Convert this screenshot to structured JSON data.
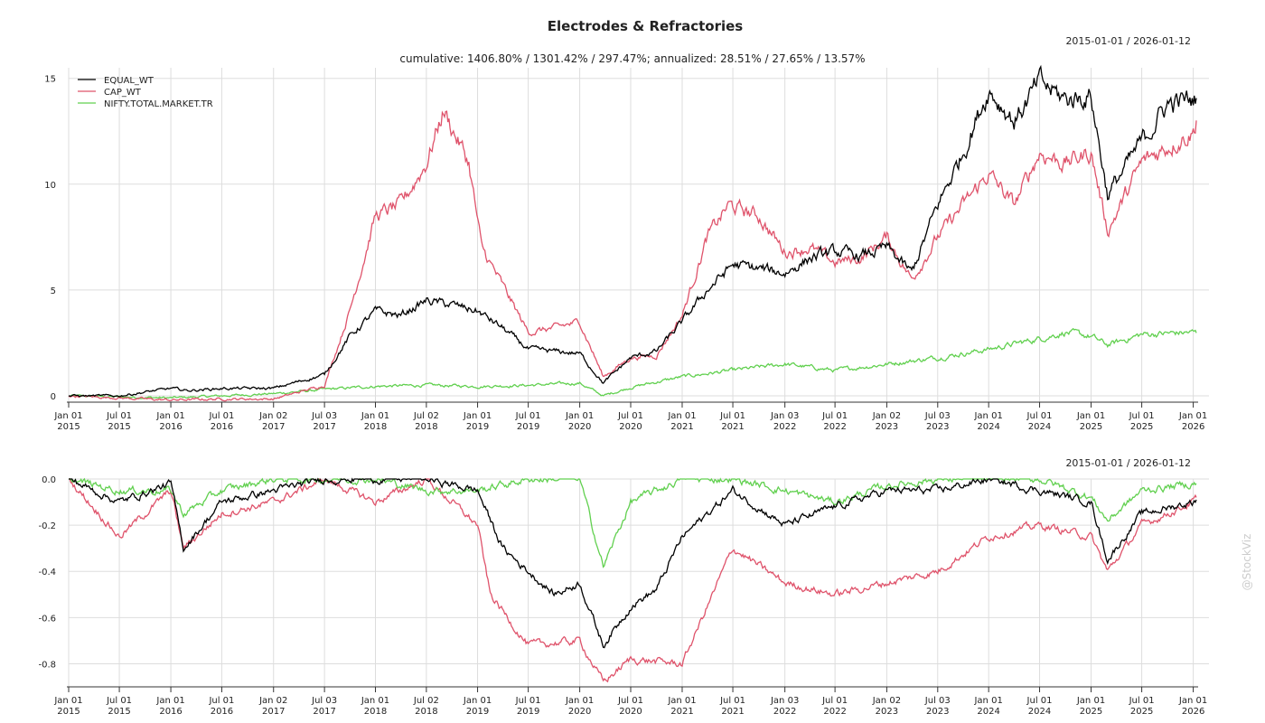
{
  "title": "Electrodes & Refractories",
  "subtitle": "cumulative: 1406.80% / 1301.42% / 297.47%; annualized: 28.51% / 27.65% / 13.57%",
  "date_range_label": "2015-01-01 / 2026-01-12",
  "watermark": "@StockViz",
  "colors": {
    "EQUAL_WT": "#000000",
    "CAP_WT": "#df536b",
    "NIFTY.TOTAL.MARKET.TR": "#61d04f"
  },
  "chart_data": [
    {
      "type": "line",
      "name_role": "cumulative returns",
      "title": "Electrodes & Refractories",
      "ylim": [
        -0.3,
        15.5
      ],
      "yticks": [
        0,
        5,
        10,
        15
      ],
      "ytick_labels": [
        "0",
        "5",
        "10",
        "15"
      ],
      "xticks": [
        "2015-01-01",
        "2015-07-01",
        "2016-01-01",
        "2016-07-01",
        "2017-01-02",
        "2017-07-03",
        "2018-01-01",
        "2018-07-02",
        "2019-01-01",
        "2019-07-01",
        "2020-01-01",
        "2020-07-01",
        "2021-01-01",
        "2021-07-01",
        "2022-01-03",
        "2022-07-01",
        "2023-01-02",
        "2023-07-03",
        "2024-01-01",
        "2024-07-01",
        "2025-01-01",
        "2025-07-01",
        "2026-01-01"
      ],
      "xtick_labels": [
        [
          "Jan 01",
          "2015"
        ],
        [
          "Jul 01",
          "2015"
        ],
        [
          "Jan 01",
          "2016"
        ],
        [
          "Jul 01",
          "2016"
        ],
        [
          "Jan 02",
          "2017"
        ],
        [
          "Jul 03",
          "2017"
        ],
        [
          "Jan 01",
          "2018"
        ],
        [
          "Jul 02",
          "2018"
        ],
        [
          "Jan 01",
          "2019"
        ],
        [
          "Jul 01",
          "2019"
        ],
        [
          "Jan 01",
          "2020"
        ],
        [
          "Jul 01",
          "2020"
        ],
        [
          "Jan 01",
          "2021"
        ],
        [
          "Jul 01",
          "2021"
        ],
        [
          "Jan 03",
          "2022"
        ],
        [
          "Jul 01",
          "2022"
        ],
        [
          "Jan 02",
          "2023"
        ],
        [
          "Jul 03",
          "2023"
        ],
        [
          "Jan 01",
          "2024"
        ],
        [
          "Jul 01",
          "2024"
        ],
        [
          "Jan 01",
          "2025"
        ],
        [
          "Jul 01",
          "2025"
        ],
        [
          "Jan 01",
          "2026"
        ]
      ],
      "legend": [
        "EQUAL_WT",
        "CAP_WT",
        "NIFTY.TOTAL.MARKET.TR"
      ],
      "legend_position": "top-left",
      "grid": true,
      "series": [
        {
          "name": "EQUAL_WT",
          "x": [
            "2015-01-01",
            "2015-07-01",
            "2016-01-01",
            "2016-03-01",
            "2016-07-01",
            "2017-01-02",
            "2017-07-03",
            "2017-10-01",
            "2018-01-01",
            "2018-04-01",
            "2018-07-02",
            "2018-10-01",
            "2019-01-01",
            "2019-04-01",
            "2019-07-01",
            "2019-10-01",
            "2020-01-01",
            "2020-03-25",
            "2020-07-01",
            "2020-10-01",
            "2021-01-01",
            "2021-04-01",
            "2021-07-01",
            "2021-10-01",
            "2022-01-03",
            "2022-04-01",
            "2022-07-01",
            "2022-10-01",
            "2023-01-02",
            "2023-04-01",
            "2023-07-03",
            "2023-10-01",
            "2024-01-01",
            "2024-04-01",
            "2024-07-01",
            "2024-10-01",
            "2025-01-01",
            "2025-03-01",
            "2025-07-01",
            "2025-10-01",
            "2026-01-01",
            "2026-01-12"
          ],
          "values": [
            0.0,
            0.0,
            0.35,
            0.25,
            0.35,
            0.35,
            1.0,
            2.8,
            4.0,
            3.8,
            4.5,
            4.3,
            4.0,
            3.2,
            2.2,
            2.1,
            2.0,
            0.6,
            1.8,
            2.1,
            3.5,
            5.0,
            6.2,
            6.0,
            5.8,
            6.5,
            6.8,
            6.6,
            7.0,
            5.8,
            9.0,
            11.5,
            14.5,
            13.0,
            14.8,
            14.0,
            14.2,
            9.5,
            12.0,
            13.8,
            14.0,
            14.07
          ]
        },
        {
          "name": "CAP_WT",
          "x": [
            "2015-01-01",
            "2015-07-01",
            "2016-01-01",
            "2016-07-01",
            "2017-01-02",
            "2017-07-03",
            "2017-10-01",
            "2018-01-01",
            "2018-04-01",
            "2018-07-02",
            "2018-09-01",
            "2018-12-01",
            "2019-01-15",
            "2019-04-01",
            "2019-07-01",
            "2019-10-01",
            "2020-01-01",
            "2020-03-25",
            "2020-07-01",
            "2020-10-01",
            "2021-01-01",
            "2021-04-01",
            "2021-06-15",
            "2021-10-01",
            "2022-01-03",
            "2022-04-01",
            "2022-07-01",
            "2022-10-01",
            "2023-01-02",
            "2023-04-01",
            "2023-07-03",
            "2023-10-01",
            "2024-01-01",
            "2024-04-01",
            "2024-07-01",
            "2024-10-01",
            "2025-01-01",
            "2025-03-01",
            "2025-07-01",
            "2025-10-01",
            "2026-01-01",
            "2026-01-12"
          ],
          "values": [
            0.0,
            -0.1,
            -0.2,
            -0.15,
            -0.15,
            0.5,
            4.0,
            8.5,
            9.0,
            11.0,
            13.5,
            11.0,
            7.0,
            5.2,
            3.0,
            3.2,
            3.5,
            0.9,
            1.8,
            1.9,
            3.8,
            7.5,
            9.0,
            8.5,
            6.8,
            7.0,
            6.3,
            6.5,
            7.5,
            5.5,
            7.5,
            9.0,
            10.5,
            9.0,
            11.5,
            11.0,
            11.5,
            7.8,
            11.0,
            11.8,
            12.5,
            13.01
          ]
        },
        {
          "name": "NIFTY.TOTAL.MARKET.TR",
          "x": [
            "2015-01-01",
            "2015-07-01",
            "2016-01-01",
            "2016-07-01",
            "2017-01-02",
            "2017-07-03",
            "2018-01-01",
            "2018-07-02",
            "2019-01-01",
            "2019-07-01",
            "2020-01-01",
            "2020-03-25",
            "2020-07-01",
            "2021-01-01",
            "2021-07-01",
            "2022-01-03",
            "2022-07-01",
            "2023-01-02",
            "2023-07-03",
            "2024-01-01",
            "2024-07-01",
            "2024-10-01",
            "2025-01-01",
            "2025-03-01",
            "2025-07-01",
            "2026-01-01",
            "2026-01-12"
          ],
          "values": [
            0.0,
            -0.05,
            -0.1,
            0.0,
            0.1,
            0.3,
            0.45,
            0.5,
            0.45,
            0.5,
            0.6,
            0.0,
            0.4,
            0.9,
            1.2,
            1.5,
            1.2,
            1.5,
            1.8,
            2.2,
            2.7,
            3.0,
            2.8,
            2.4,
            2.9,
            3.0,
            2.97
          ]
        }
      ]
    },
    {
      "type": "line",
      "name_role": "drawdowns",
      "ylim": [
        -0.9,
        0.0
      ],
      "yticks": [
        0.0,
        -0.2,
        -0.4,
        -0.6,
        -0.8
      ],
      "ytick_labels": [
        "0.0",
        "-0.2",
        "-0.4",
        "-0.6",
        "-0.8"
      ],
      "xtick_labels_same_as_above": true,
      "grid": true,
      "series": [
        {
          "name": "EQUAL_WT",
          "x": [
            "2015-01-01",
            "2015-07-01",
            "2016-01-01",
            "2016-02-15",
            "2016-07-01",
            "2017-01-02",
            "2017-07-03",
            "2018-01-01",
            "2018-07-02",
            "2019-01-01",
            "2019-04-01",
            "2019-07-01",
            "2019-10-01",
            "2020-01-01",
            "2020-03-25",
            "2020-07-01",
            "2020-10-01",
            "2021-01-01",
            "2021-07-01",
            "2022-01-03",
            "2022-07-01",
            "2023-01-02",
            "2023-07-03",
            "2024-01-01",
            "2024-07-01",
            "2025-01-01",
            "2025-03-01",
            "2025-07-01",
            "2026-01-01",
            "2026-01-12"
          ],
          "values": [
            0.0,
            -0.1,
            -0.02,
            -0.3,
            -0.1,
            -0.05,
            0.0,
            0.0,
            0.0,
            -0.05,
            -0.3,
            -0.4,
            -0.5,
            -0.45,
            -0.72,
            -0.55,
            -0.48,
            -0.25,
            -0.05,
            -0.2,
            -0.12,
            -0.05,
            -0.05,
            0.0,
            -0.05,
            -0.1,
            -0.35,
            -0.15,
            -0.1,
            -0.09
          ]
        },
        {
          "name": "CAP_WT",
          "x": [
            "2015-01-01",
            "2015-07-01",
            "2016-01-01",
            "2016-02-15",
            "2016-07-01",
            "2017-01-02",
            "2017-07-03",
            "2018-01-01",
            "2018-07-02",
            "2019-01-01",
            "2019-02-15",
            "2019-07-01",
            "2020-01-01",
            "2020-03-25",
            "2020-07-01",
            "2021-01-01",
            "2021-07-01",
            "2022-01-03",
            "2022-07-01",
            "2023-01-02",
            "2023-07-03",
            "2024-01-01",
            "2024-07-01",
            "2025-01-01",
            "2025-03-01",
            "2025-07-01",
            "2026-01-01",
            "2026-01-12"
          ],
          "values": [
            0.0,
            -0.25,
            -0.05,
            -0.3,
            -0.15,
            -0.1,
            0.0,
            -0.1,
            0.0,
            -0.2,
            -0.5,
            -0.72,
            -0.7,
            -0.88,
            -0.78,
            -0.8,
            -0.3,
            -0.45,
            -0.5,
            -0.45,
            -0.4,
            -0.25,
            -0.2,
            -0.25,
            -0.4,
            -0.2,
            -0.1,
            -0.08
          ]
        },
        {
          "name": "NIFTY.TOTAL.MARKET.TR",
          "x": [
            "2015-01-01",
            "2015-07-01",
            "2016-01-01",
            "2016-02-15",
            "2016-07-01",
            "2017-01-02",
            "2018-01-01",
            "2018-07-02",
            "2019-01-01",
            "2019-07-01",
            "2020-01-01",
            "2020-03-25",
            "2020-07-01",
            "2021-01-01",
            "2021-07-01",
            "2022-01-03",
            "2022-07-01",
            "2023-01-02",
            "2023-07-03",
            "2024-01-01",
            "2024-07-01",
            "2025-01-01",
            "2025-03-01",
            "2025-07-01",
            "2026-01-01",
            "2026-01-12"
          ],
          "values": [
            0.0,
            -0.05,
            -0.05,
            -0.15,
            -0.05,
            0.0,
            0.0,
            -0.05,
            -0.05,
            0.0,
            0.0,
            -0.38,
            -0.1,
            0.0,
            0.0,
            -0.05,
            -0.1,
            -0.03,
            0.0,
            0.0,
            0.0,
            -0.08,
            -0.18,
            -0.05,
            -0.02,
            -0.02
          ]
        }
      ]
    }
  ]
}
